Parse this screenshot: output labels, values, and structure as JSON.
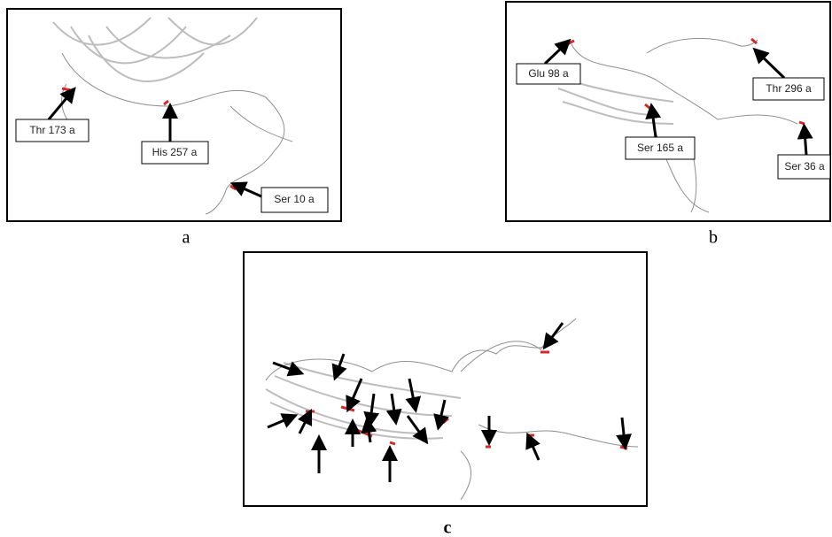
{
  "panels": [
    {
      "caption": "a",
      "labels": [
        "Thr 173 a",
        "His 257 a",
        "Ser 10 a"
      ]
    },
    {
      "caption": "b",
      "labels": [
        "Glu 98 a",
        "Thr 296 a",
        "Ser 165 a",
        "Ser 36 a"
      ]
    },
    {
      "caption": "c"
    }
  ]
}
